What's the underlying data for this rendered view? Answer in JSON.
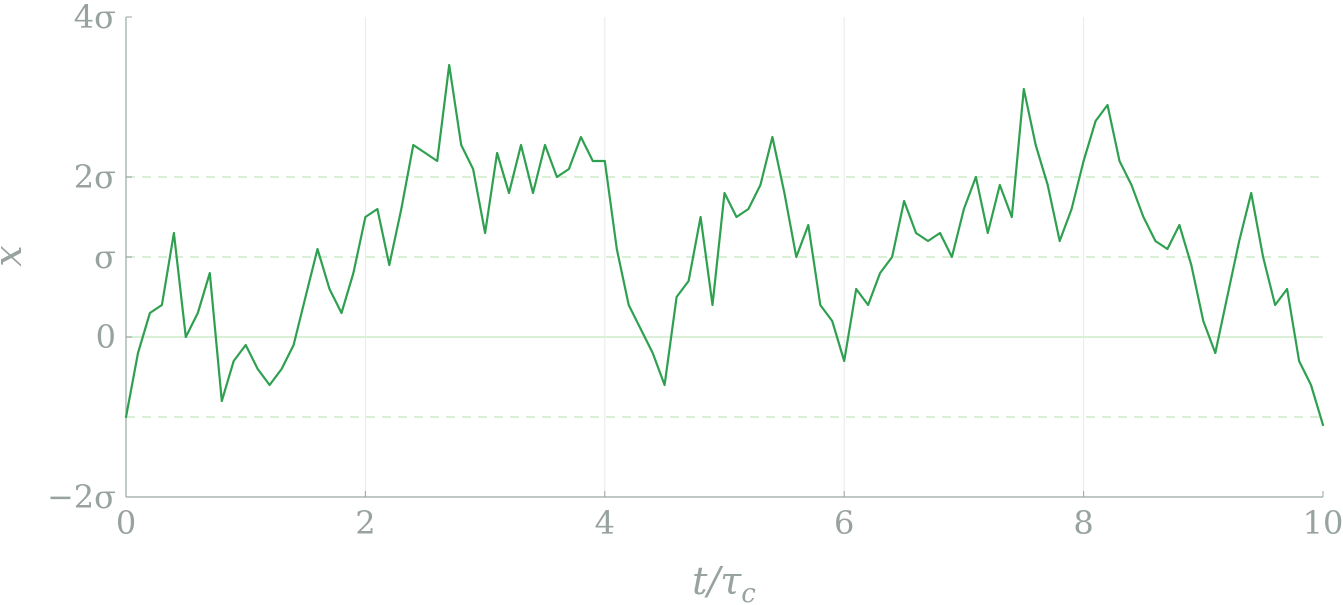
{
  "chart_data": {
    "type": "line",
    "title": "",
    "xlabel": "t/τc",
    "ylabel": "x",
    "xlim": [
      0,
      10
    ],
    "ylim": [
      -2,
      4
    ],
    "y_unit": "σ",
    "grid": true,
    "legend": "none",
    "x_ticks": [
      {
        "value": 0,
        "label": "0"
      },
      {
        "value": 2,
        "label": "2"
      },
      {
        "value": 4,
        "label": "4"
      },
      {
        "value": 6,
        "label": "6"
      },
      {
        "value": 8,
        "label": "8"
      },
      {
        "value": 10,
        "label": "10"
      }
    ],
    "y_ticks": [
      {
        "value": -2,
        "label": "−2σ"
      },
      {
        "value": 0,
        "label": "0"
      },
      {
        "value": 1,
        "label": "σ"
      },
      {
        "value": 2,
        "label": "2σ"
      },
      {
        "value": 4,
        "label": "4σ"
      }
    ],
    "reference_lines": [
      {
        "y": 2,
        "style": "dashed"
      },
      {
        "y": 1,
        "style": "dashed"
      },
      {
        "y": 0,
        "style": "solid"
      },
      {
        "y": -1,
        "style": "dashed"
      }
    ],
    "series": [
      {
        "x": [
          0,
          0.1,
          0.2,
          0.3,
          0.4,
          0.5,
          0.6,
          0.7,
          0.8,
          0.9,
          1.0,
          1.1,
          1.2,
          1.3,
          1.4,
          1.5,
          1.6,
          1.7,
          1.8,
          1.9,
          2.0,
          2.1,
          2.2,
          2.3,
          2.4,
          2.5,
          2.6,
          2.7,
          2.8,
          2.9,
          3.0,
          3.1,
          3.2,
          3.3,
          3.4,
          3.5,
          3.6,
          3.7,
          3.8,
          3.9,
          4.0,
          4.1,
          4.2,
          4.3,
          4.4,
          4.5,
          4.6,
          4.7,
          4.8,
          4.9,
          5.0,
          5.1,
          5.2,
          5.3,
          5.4,
          5.5,
          5.6,
          5.7,
          5.8,
          5.9,
          6.0,
          6.1,
          6.2,
          6.3,
          6.4,
          6.5,
          6.6,
          6.7,
          6.8,
          6.9,
          7.0,
          7.1,
          7.2,
          7.3,
          7.4,
          7.5,
          7.6,
          7.7,
          7.8,
          7.9,
          8.0,
          8.1,
          8.2,
          8.3,
          8.4,
          8.5,
          8.6,
          8.7,
          8.8,
          8.9,
          9.0,
          9.1,
          9.2,
          9.3,
          9.4,
          9.5,
          9.6,
          9.7,
          9.8,
          9.9,
          10.0
        ],
        "values": [
          -1.0,
          -0.2,
          0.3,
          0.4,
          1.3,
          0.0,
          0.3,
          0.8,
          -0.8,
          -0.3,
          -0.1,
          -0.4,
          -0.6,
          -0.4,
          -0.1,
          0.5,
          1.1,
          0.6,
          0.3,
          0.8,
          1.5,
          1.6,
          0.9,
          1.6,
          2.4,
          2.3,
          2.2,
          3.4,
          2.4,
          2.1,
          1.3,
          2.3,
          1.8,
          2.4,
          1.8,
          2.4,
          2.0,
          2.1,
          2.5,
          2.2,
          2.2,
          1.1,
          0.4,
          0.1,
          -0.2,
          -0.6,
          0.5,
          0.7,
          1.5,
          0.4,
          1.8,
          1.5,
          1.6,
          1.9,
          2.5,
          1.8,
          1.0,
          1.4,
          0.4,
          0.2,
          -0.3,
          0.6,
          0.4,
          0.8,
          1.0,
          1.7,
          1.3,
          1.2,
          1.3,
          1.0,
          1.6,
          2.0,
          1.3,
          1.9,
          1.5,
          3.1,
          2.4,
          1.9,
          1.2,
          1.6,
          2.2,
          2.7,
          2.9,
          2.2,
          1.9,
          1.5,
          1.2,
          1.1,
          1.4,
          0.9,
          0.2,
          -0.2,
          0.5,
          1.2,
          1.8,
          1.0,
          0.4,
          0.6,
          -0.3,
          -0.6,
          -1.1
        ]
      }
    ]
  },
  "colors": {
    "series": "#2fa050",
    "axis": "#9aa6a0",
    "text": "#98a39e",
    "ref_line": "#d9f0d6",
    "grid": "#eaeaea"
  }
}
